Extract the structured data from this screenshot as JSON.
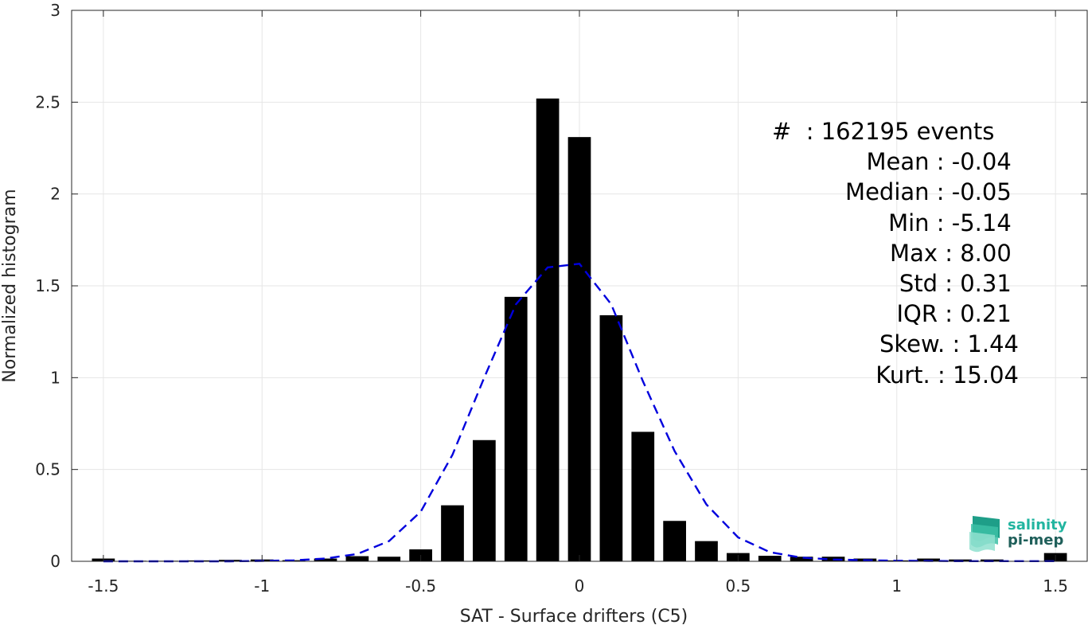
{
  "chart_data": {
    "type": "bar",
    "xlabel": "SAT - Surface drifters (C5)",
    "ylabel": "Normalized histogram",
    "xlim": [
      -1.6,
      1.6
    ],
    "ylim": [
      0,
      3
    ],
    "grid": true,
    "xticks": [
      "-1.5",
      "-1",
      "-0.5",
      "0",
      "0.5",
      "1",
      "1.5"
    ],
    "yticks": [
      "0",
      "0.5",
      "1",
      "1.5",
      "2",
      "2.5",
      "3"
    ],
    "bar_color": "#000000",
    "bars": {
      "x": [
        -1.5,
        -1.4,
        -1.3,
        -1.2,
        -1.1,
        -1.0,
        -0.9,
        -0.8,
        -0.7,
        -0.6,
        -0.5,
        -0.4,
        -0.3,
        -0.2,
        -0.1,
        0.0,
        0.1,
        0.2,
        0.3,
        0.4,
        0.5,
        0.6,
        0.7,
        0.8,
        0.9,
        1.0,
        1.1,
        1.2,
        1.3,
        1.4,
        1.5
      ],
      "values": [
        0.015,
        0.003,
        0.003,
        0.005,
        0.008,
        0.01,
        0.006,
        0.015,
        0.028,
        0.025,
        0.065,
        0.305,
        0.66,
        1.44,
        2.52,
        2.31,
        1.34,
        0.705,
        0.22,
        0.11,
        0.045,
        0.03,
        0.025,
        0.025,
        0.015,
        0.005,
        0.015,
        0.01,
        0.01,
        0.002,
        0.045
      ]
    },
    "series": [
      {
        "type": "line",
        "style": "dashed",
        "color": "#0000dd",
        "x": [
          -1.5,
          -1.4,
          -1.3,
          -1.2,
          -1.1,
          -1.0,
          -0.9,
          -0.8,
          -0.7,
          -0.6,
          -0.5,
          -0.4,
          -0.3,
          -0.2,
          -0.1,
          0.0,
          0.1,
          0.2,
          0.3,
          0.4,
          0.5,
          0.6,
          0.7,
          0.8,
          0.9,
          1.0,
          1.1,
          1.2,
          1.3,
          1.4,
          1.5
        ],
        "values": [
          0.0,
          0.0,
          0.0,
          0.0,
          0.0,
          0.002,
          0.005,
          0.015,
          0.04,
          0.11,
          0.27,
          0.58,
          1.0,
          1.4,
          1.6,
          1.62,
          1.4,
          0.98,
          0.6,
          0.31,
          0.13,
          0.05,
          0.02,
          0.01,
          0.006,
          0.003,
          0.002,
          0.001,
          0.001,
          0.001,
          0.001
        ]
      }
    ]
  },
  "stats": [
    "#  : 162195 events",
    "Mean : -0.04 ",
    "Median : -0.05 ",
    "Min : -5.14 ",
    "Max : 8.00 ",
    "Std : 0.31 ",
    "IQR : 0.21 ",
    "Skew. : 1.44",
    "Kurt. : 15.04"
  ],
  "logo": {
    "line1": "salinity",
    "line2": "pi-mep",
    "color1": "#22b5a0",
    "color2": "#1f5f5a"
  }
}
